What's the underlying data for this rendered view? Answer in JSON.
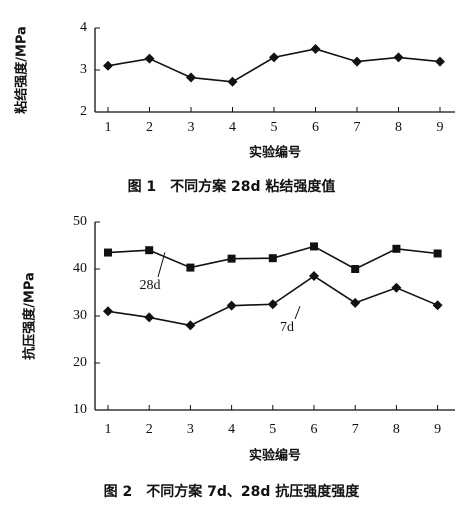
{
  "chart_data": [
    {
      "type": "line",
      "ylabel": "粘结强度/MPa",
      "xlabel": "实验编号",
      "caption": "图 1　不同方案 28d 粘结强度值",
      "categories": [
        "1",
        "2",
        "3",
        "4",
        "5",
        "6",
        "7",
        "8",
        "9"
      ],
      "series": [
        {
          "name": null,
          "color": "#111111",
          "marker": "diamond",
          "values": [
            3.1,
            3.27,
            2.82,
            2.72,
            3.3,
            3.5,
            3.2,
            3.3,
            3.2
          ]
        }
      ],
      "ylim": [
        2,
        4
      ],
      "yticks": [
        2,
        3,
        4
      ]
    },
    {
      "type": "line",
      "ylabel": "抗压强度/MPa",
      "xlabel": "实验编号",
      "caption": "图 2　不同方案 7d、28d 抗压强度强度",
      "categories": [
        "1",
        "2",
        "3",
        "4",
        "5",
        "6",
        "7",
        "8",
        "9"
      ],
      "series": [
        {
          "name": "28d",
          "color": "#111111",
          "marker": "square",
          "values": [
            43.5,
            44,
            40.3,
            42.2,
            42.3,
            44.8,
            40,
            44.3,
            43.3
          ]
        },
        {
          "name": "7d",
          "color": "#111111",
          "marker": "diamond",
          "values": [
            31,
            29.7,
            28,
            32.2,
            32.5,
            38.5,
            32.8,
            36,
            32.3
          ]
        }
      ],
      "ylim": [
        10,
        50
      ],
      "yticks": [
        10,
        20,
        30,
        40,
        50
      ]
    }
  ]
}
